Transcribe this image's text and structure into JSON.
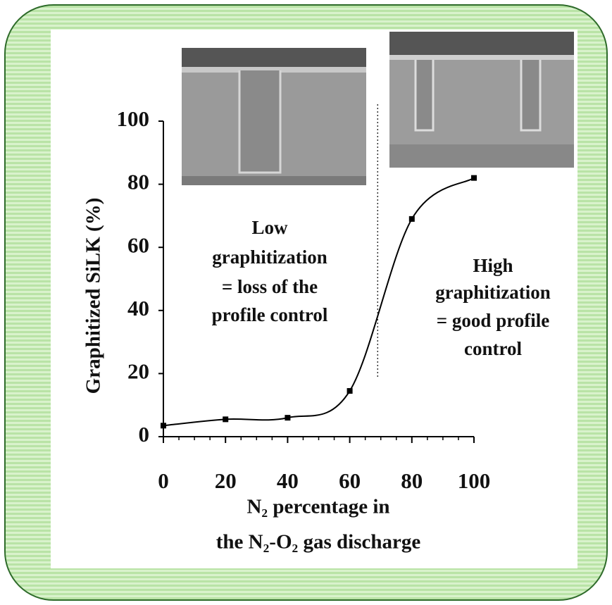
{
  "chart_data": {
    "type": "line",
    "y_label": "Graphitized SiLK (%)",
    "x_label": [
      "N₂ percentage in",
      "the N₂-O₂ gas discharge"
    ],
    "x": [
      0,
      20,
      40,
      60,
      80,
      100
    ],
    "series": [
      {
        "color": "#000000",
        "values": [
          3.5,
          5.5,
          6,
          14.5,
          69,
          82
        ]
      }
    ],
    "xlim": [
      0,
      100
    ],
    "xticks": [
      0,
      20,
      40,
      60,
      80,
      100
    ],
    "xminorticks": [
      5,
      10,
      15,
      25,
      30,
      35,
      45,
      50,
      55,
      65,
      70,
      75,
      85,
      90,
      95
    ],
    "ylim": [
      0,
      100
    ],
    "yticks": [
      0,
      20,
      40,
      60,
      80,
      100
    ],
    "divider_x": 69,
    "annotations": [
      {
        "lines": [
          "Low",
          "graphitization",
          "= loss of the",
          "profile control"
        ]
      },
      {
        "lines": [
          "High",
          "graphitization",
          "= good profile",
          "control"
        ]
      }
    ]
  }
}
